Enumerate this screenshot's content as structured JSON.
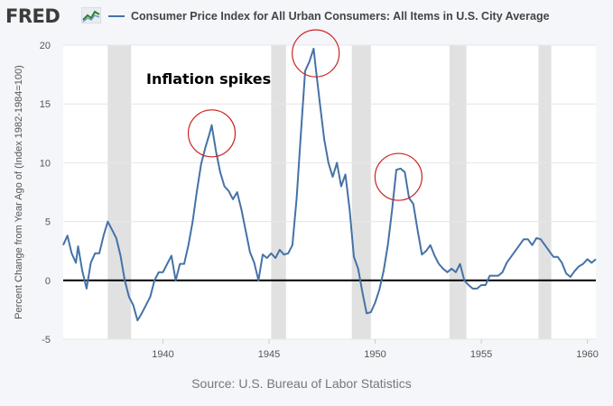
{
  "header": {
    "brand": "FRED",
    "brand_icon": "line-chart-icon"
  },
  "footer": {
    "source": "Source: U.S. Bureau of Labor Statistics"
  },
  "annotation": {
    "text": "Inflation spikes"
  },
  "colors": {
    "series": "#4572a7",
    "recession": "#e1e1e1",
    "circles": "#cc2222",
    "background": "#f4f6f9",
    "plot_background": "#ffffff"
  },
  "chart_data": {
    "type": "line",
    "title": "",
    "xlabel": "",
    "ylabel": "Percent Change from Year Ago of (Index 1982-1984=100)",
    "xlim": [
      1935.3,
      1960.4
    ],
    "ylim": [
      -5,
      20
    ],
    "x_ticks": [
      1940,
      1945,
      1950,
      1955,
      1960
    ],
    "y_ticks": [
      -5,
      0,
      5,
      10,
      15,
      20
    ],
    "grid": "horizontal",
    "legend_position": "top",
    "zero_line": true,
    "recessions": [
      [
        1937.4,
        1938.5
      ],
      [
        1945.1,
        1945.8
      ],
      [
        1948.9,
        1949.8
      ],
      [
        1953.5,
        1954.3
      ],
      [
        1957.7,
        1958.3
      ]
    ],
    "highlights": [
      {
        "x": 1942.3,
        "y": 12.5
      },
      {
        "x": 1947.2,
        "y": 19.3
      },
      {
        "x": 1951.1,
        "y": 8.8
      }
    ],
    "series": [
      {
        "name": "Consumer Price Index for All Urban Consumers: All Items in U.S. City Average",
        "x": [
          1935.3,
          1935.5,
          1935.7,
          1935.9,
          1936.0,
          1936.2,
          1936.4,
          1936.6,
          1936.8,
          1937.0,
          1937.2,
          1937.4,
          1937.6,
          1937.8,
          1938.0,
          1938.2,
          1938.4,
          1938.6,
          1938.8,
          1939.0,
          1939.2,
          1939.4,
          1939.6,
          1939.8,
          1940.0,
          1940.2,
          1940.4,
          1940.6,
          1940.8,
          1941.0,
          1941.2,
          1941.4,
          1941.6,
          1941.8,
          1942.0,
          1942.2,
          1942.3,
          1942.5,
          1942.7,
          1942.9,
          1943.1,
          1943.3,
          1943.5,
          1943.7,
          1943.9,
          1944.1,
          1944.3,
          1944.5,
          1944.7,
          1944.9,
          1945.1,
          1945.3,
          1945.5,
          1945.7,
          1945.9,
          1946.1,
          1946.3,
          1946.5,
          1946.7,
          1946.9,
          1947.1,
          1947.2,
          1947.4,
          1947.6,
          1947.8,
          1948.0,
          1948.2,
          1948.4,
          1948.6,
          1948.8,
          1949.0,
          1949.2,
          1949.4,
          1949.6,
          1949.8,
          1950.0,
          1950.2,
          1950.4,
          1950.6,
          1950.8,
          1951.0,
          1951.2,
          1951.4,
          1951.6,
          1951.8,
          1952.0,
          1952.2,
          1952.4,
          1952.6,
          1952.8,
          1953.0,
          1953.2,
          1953.4,
          1953.6,
          1953.8,
          1954.0,
          1954.2,
          1954.4,
          1954.6,
          1954.8,
          1955.0,
          1955.2,
          1955.4,
          1955.6,
          1955.8,
          1956.0,
          1956.2,
          1956.4,
          1956.6,
          1956.8,
          1957.0,
          1957.2,
          1957.4,
          1957.6,
          1957.8,
          1958.0,
          1958.2,
          1958.4,
          1958.6,
          1958.8,
          1959.0,
          1959.2,
          1959.4,
          1959.6,
          1959.8,
          1960.0,
          1960.2,
          1960.4
        ],
        "values": [
          3.0,
          3.8,
          2.3,
          1.5,
          2.9,
          0.8,
          -0.7,
          1.5,
          2.3,
          2.3,
          3.8,
          5.0,
          4.3,
          3.6,
          2.1,
          0.0,
          -1.4,
          -2.1,
          -3.4,
          -2.8,
          -2.1,
          -1.4,
          0.0,
          0.7,
          0.7,
          1.4,
          2.1,
          0.0,
          1.4,
          1.4,
          3.0,
          5.0,
          7.6,
          9.9,
          11.3,
          12.5,
          13.2,
          11.0,
          9.2,
          8.0,
          7.6,
          6.9,
          7.5,
          6.0,
          4.2,
          2.4,
          1.5,
          0.0,
          2.2,
          1.9,
          2.3,
          1.9,
          2.6,
          2.2,
          2.3,
          3.0,
          7.0,
          12.5,
          17.8,
          18.6,
          19.7,
          18.1,
          15.0,
          12.0,
          10.0,
          8.8,
          10.0,
          8.0,
          9.0,
          6.0,
          2.0,
          1.0,
          -1.0,
          -2.8,
          -2.7,
          -1.9,
          -0.8,
          0.8,
          3.0,
          6.0,
          9.4,
          9.5,
          9.2,
          7.0,
          6.5,
          4.3,
          2.2,
          2.5,
          3.0,
          2.1,
          1.4,
          1.0,
          0.7,
          1.0,
          0.7,
          1.4,
          0.0,
          -0.4,
          -0.7,
          -0.7,
          -0.4,
          -0.4,
          0.4,
          0.4,
          0.4,
          0.7,
          1.5,
          2.0,
          2.5,
          3.0,
          3.5,
          3.5,
          3.0,
          3.6,
          3.5,
          3.0,
          2.5,
          2.0,
          2.0,
          1.5,
          0.6,
          0.3,
          0.8,
          1.2,
          1.4,
          1.8,
          1.5,
          1.8
        ]
      }
    ]
  }
}
